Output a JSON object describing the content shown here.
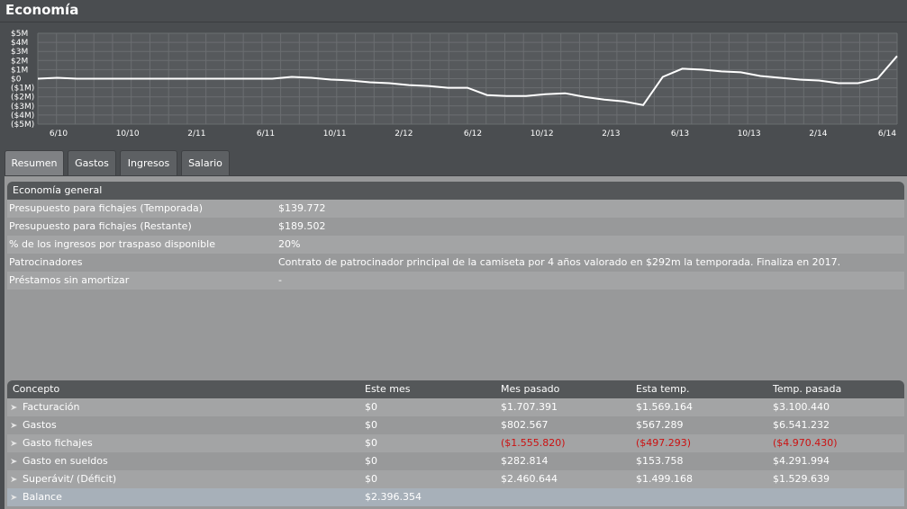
{
  "page": {
    "title": "Economía"
  },
  "chart_data": {
    "type": "line",
    "y_ticks": [
      "$5M",
      "$4M",
      "$3M",
      "$2M",
      "$1M",
      "$0",
      "($1M)",
      "($2M)",
      "($3M)",
      "($4M)",
      "($5M)"
    ],
    "ylim": [
      -5,
      5
    ],
    "x_ticks": [
      "6/10",
      "10/10",
      "2/11",
      "6/11",
      "10/11",
      "2/12",
      "6/12",
      "10/12",
      "2/13",
      "6/13",
      "10/13",
      "2/14",
      "6/14"
    ],
    "series": [
      {
        "name": "Balance",
        "values": [
          0.0,
          0.1,
          0.0,
          0.0,
          0.0,
          0.0,
          0.0,
          0.0,
          0.0,
          0.0,
          0.0,
          0.0,
          0.0,
          0.2,
          0.1,
          -0.1,
          -0.2,
          -0.4,
          -0.5,
          -0.7,
          -0.8,
          -1.0,
          -1.0,
          -1.8,
          -1.9,
          -1.9,
          -1.7,
          -1.6,
          -2.0,
          -2.3,
          -2.5,
          -2.9,
          0.2,
          1.1,
          1.0,
          0.8,
          0.7,
          0.3,
          0.1,
          -0.1,
          -0.2,
          -0.5,
          -0.5,
          0.0,
          2.5
        ]
      }
    ]
  },
  "tabs": [
    {
      "label": "Resumen",
      "active": true
    },
    {
      "label": "Gastos"
    },
    {
      "label": "Ingresos"
    },
    {
      "label": "Salario"
    }
  ],
  "general": {
    "heading": "Economía general",
    "rows": [
      {
        "label": "Presupuesto para fichajes (Temporada)",
        "value": "$139.772"
      },
      {
        "label": "Presupuesto para fichajes (Restante)",
        "value": "$189.502"
      },
      {
        "label": "% de los ingresos por traspaso disponible",
        "value": "20%"
      },
      {
        "label": "Patrocinadores",
        "value": "Contrato de patrocinador principal de la camiseta por 4 años valorado en $292m la temporada. Finaliza en 2017."
      },
      {
        "label": "Préstamos sin amortizar",
        "value": "-"
      }
    ]
  },
  "table": {
    "headers": [
      "Concepto",
      "Este mes",
      "Mes pasado",
      "Esta temp.",
      "Temp. pasada"
    ],
    "rows": [
      {
        "concept": "Facturación",
        "cells": [
          "$0",
          "$1.707.391",
          "$1.569.164",
          "$3.100.440"
        ]
      },
      {
        "concept": "Gastos",
        "cells": [
          "$0",
          "$802.567",
          "$567.289",
          "$6.541.232"
        ]
      },
      {
        "concept": "Gasto fichajes",
        "cells": [
          "$0",
          "($1.555.820)",
          "($497.293)",
          "($4.970.430)"
        ]
      },
      {
        "concept": "Gasto en sueldos",
        "cells": [
          "$0",
          "$282.814",
          "$153.758",
          "$4.291.994"
        ]
      },
      {
        "concept": "Superávit/ (Déficit)",
        "cells": [
          "$0",
          "$2.460.644",
          "$1.499.168",
          "$1.529.639"
        ]
      }
    ],
    "balance": {
      "label": "Balance",
      "value": "$2.396.354"
    }
  },
  "colors": {
    "negative": "#cc1111",
    "line": "#ffffff"
  }
}
